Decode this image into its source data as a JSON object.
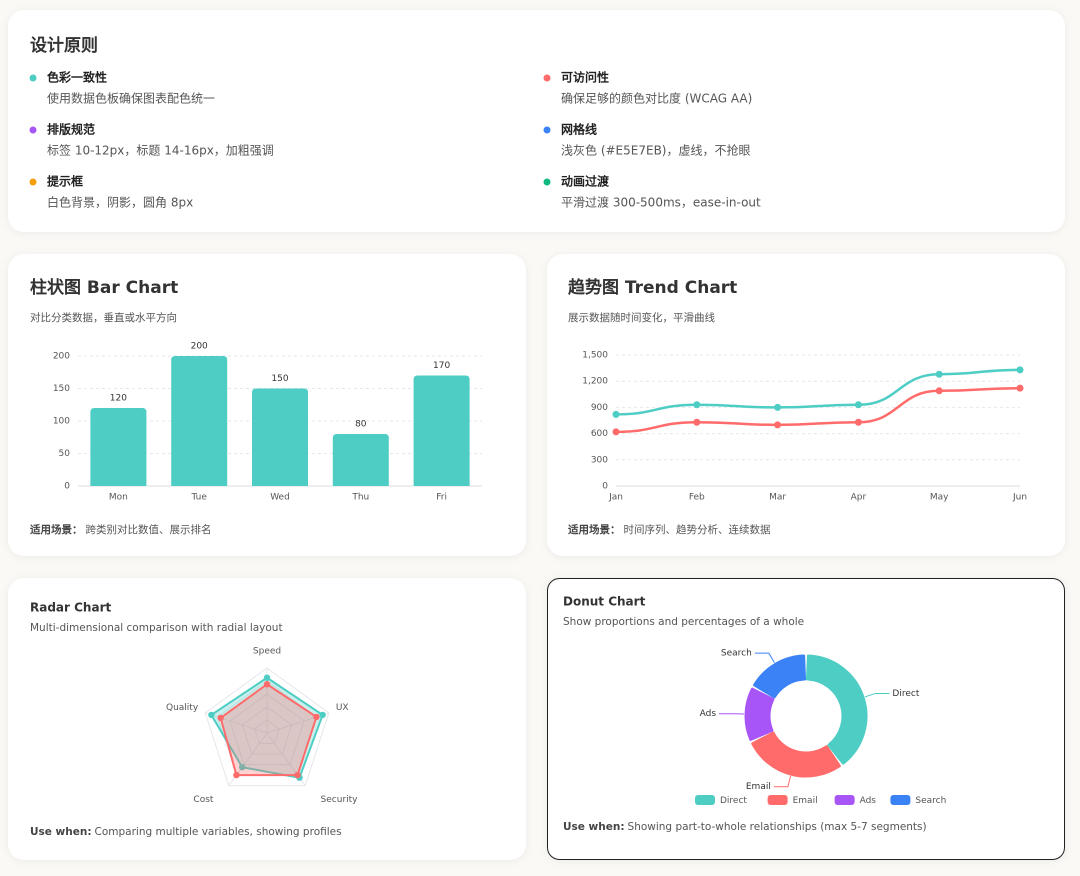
{
  "principles": {
    "title": "设计原则",
    "items": [
      {
        "name": "色彩一致性",
        "desc": "使用数据色板确保图表配色统一",
        "color": "#4ECDC4"
      },
      {
        "name": "可访问性",
        "desc": "确保足够的颜色对比度 (WCAG AA)",
        "color": "#FF6B6B"
      },
      {
        "name": "排版规范",
        "desc": "标签 10-12px，标题 14-16px，加粗强调",
        "color": "#A855F7"
      },
      {
        "name": "网格线",
        "desc": "浅灰色 (#E5E7EB)，虚线，不抢眼",
        "color": "#3B82F6"
      },
      {
        "name": "提示框",
        "desc": "白色背景，阴影，圆角 8px",
        "color": "#F59E0B"
      },
      {
        "name": "动画过渡",
        "desc": "平滑过渡 300-500ms，ease-in-out",
        "color": "#10B981"
      }
    ]
  },
  "chart_data": [
    {
      "type": "bar",
      "title": "柱状图 Bar Chart",
      "subtitle": "对比分类数据，垂直或水平方向",
      "note_label": "适用场景：",
      "note": "跨类别对比数值、展示排名",
      "categories": [
        "Mon",
        "Tue",
        "Wed",
        "Thu",
        "Fri"
      ],
      "values": [
        120,
        200,
        150,
        80,
        170
      ],
      "color": "#4ECDC4",
      "ylim": [
        0,
        200
      ],
      "yticks": [
        0,
        50,
        100,
        150,
        200
      ],
      "grid": true
    },
    {
      "type": "line",
      "title": "趋势图 Trend Chart",
      "subtitle": "展示数据随时间变化，平滑曲线",
      "note_label": "适用场景：",
      "note": "时间序列、趋势分析、连续数据",
      "categories": [
        "Jan",
        "Feb",
        "Mar",
        "Apr",
        "May",
        "Jun"
      ],
      "series": [
        {
          "color": "#4ECDC4",
          "values": [
            820,
            930,
            900,
            930,
            1280,
            1330
          ]
        },
        {
          "color": "#FF6B6B",
          "values": [
            620,
            730,
            700,
            730,
            1090,
            1120
          ]
        }
      ],
      "ylim": [
        0,
        1500
      ],
      "yticks": [
        0,
        300,
        600,
        900,
        {
          "value": 1200,
          "label": "1,200"
        },
        {
          "value": 1500,
          "label": "1,500"
        }
      ],
      "grid": true,
      "smooth": true
    },
    {
      "type": "radar",
      "title": "Radar Chart",
      "subtitle": "Multi-dimensional comparison with radial layout",
      "note_label": "Use when:",
      "note": "Comparing multiple variables, showing profiles",
      "categories": [
        "Speed",
        "UX",
        "Security",
        "Cost",
        "Quality"
      ],
      "series": [
        {
          "color": "#4ECDC4",
          "values": [
            85,
            90,
            85,
            65,
            90
          ]
        },
        {
          "color": "#FF6B6B",
          "values": [
            75,
            80,
            80,
            80,
            75
          ]
        }
      ],
      "rlim": [
        0,
        100
      ],
      "rticks": [
        20,
        40,
        60,
        80,
        100
      ],
      "grid": true
    },
    {
      "type": "donut",
      "title": "Donut Chart",
      "subtitle": "Show proportions and percentages of a whole",
      "note_label": "Use when:",
      "note": "Showing part-to-whole relationships (max 5-7 segments)",
      "categories": [
        "Direct",
        "Email",
        "Ads",
        "Search"
      ],
      "values": [
        40,
        28,
        15,
        17
      ],
      "colors": [
        "#4ECDC4",
        "#FF6B6B",
        "#A855F7",
        "#3B82F6"
      ],
      "legend": "bottom"
    }
  ]
}
